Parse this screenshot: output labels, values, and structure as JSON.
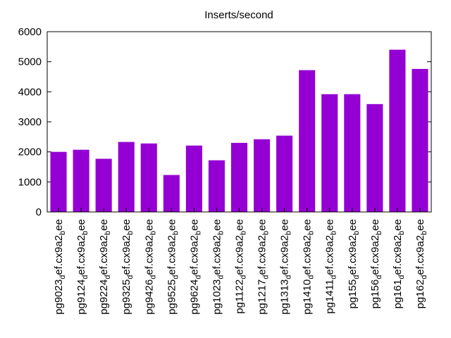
{
  "chart_data": {
    "type": "bar",
    "title": "Inserts/second",
    "xlabel": "",
    "ylabel": "",
    "ylim": [
      0,
      6000
    ],
    "yticks": [
      "0",
      "1000",
      "2000",
      "3000",
      "4000",
      "5000",
      "6000"
    ],
    "grid": false,
    "legend": "none",
    "bar_color": "#9400d3",
    "categories": [
      "pg9023_def.cx9a2_bee",
      "pg9124_def.cx9a2_bee",
      "pg9224_def.cx9a2_bee",
      "pg9325_def.cx9a2_bee",
      "pg9426_def.cx9a2_bee",
      "pg9525_def.cx9a2_bee",
      "pg9624_def.cx9a2_bee",
      "pg1023_def.cx9a2_bee",
      "pg1122_def.cx9a2_bee",
      "pg1217_def.cx9a2_bee",
      "pg1313_def.cx9a2_bee",
      "pg1410_def.cx9a2_bee",
      "pg1411_def.cx9a2_bee",
      "pg155_def.cx9a2_bee",
      "pg156_def.cx9a2_bee",
      "pg161_def.cx9a2_bee",
      "pg162_def.cx9a2_bee"
    ],
    "values": [
      2000,
      2070,
      1770,
      2330,
      2280,
      1230,
      2210,
      1720,
      2300,
      2420,
      2540,
      4720,
      3920,
      3920,
      3590,
      5400,
      4760
    ]
  }
}
